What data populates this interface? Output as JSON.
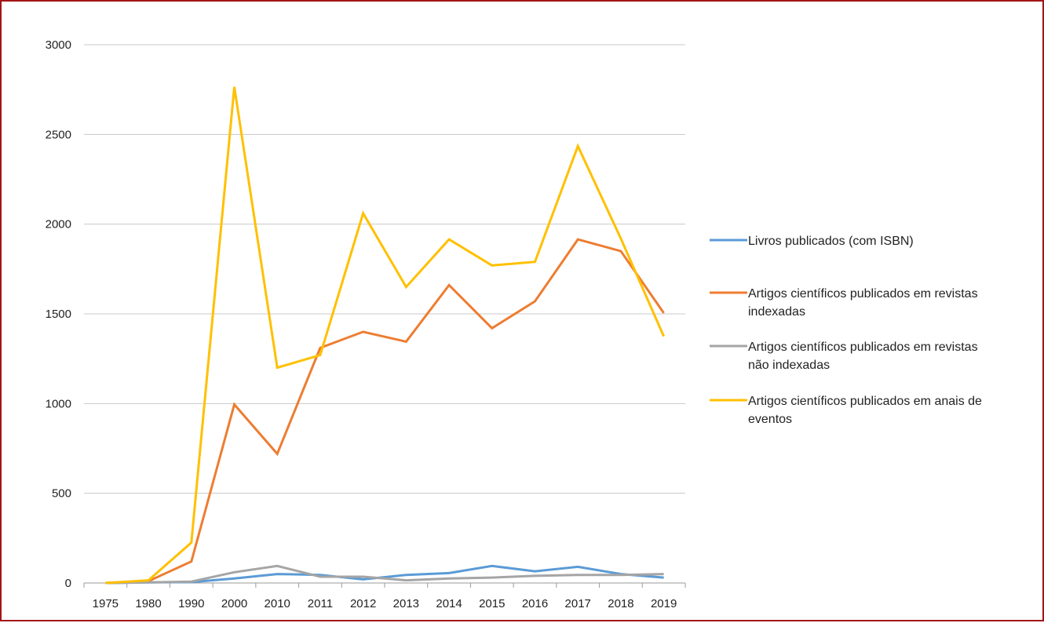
{
  "chart_data": {
    "type": "line",
    "title": "",
    "xlabel": "",
    "ylabel": "",
    "categories": [
      "1975",
      "1980",
      "1990",
      "2000",
      "2010",
      "2011",
      "2012",
      "2013",
      "2014",
      "2015",
      "2016",
      "2017",
      "2018",
      "2019"
    ],
    "ylim": [
      0,
      3000
    ],
    "yticks": [
      0,
      500,
      1000,
      1500,
      2000,
      2500,
      3000
    ],
    "grid": true,
    "legend_position": "right",
    "series": [
      {
        "name": "Livros publicados (com ISBN)",
        "color": "#5b9bd5",
        "values": [
          0,
          3,
          5,
          25,
          50,
          45,
          20,
          45,
          55,
          95,
          65,
          90,
          50,
          30
        ]
      },
      {
        "name": "Artigos científicos publicados em revistas indexadas",
        "color": "#ed7d31",
        "values": [
          0,
          10,
          120,
          995,
          720,
          1310,
          1400,
          1345,
          1660,
          1420,
          1570,
          1915,
          1850,
          1505
        ]
      },
      {
        "name": "Artigos científicos publicados em revistas não indexadas",
        "color": "#a5a5a5",
        "values": [
          0,
          3,
          8,
          60,
          95,
          35,
          35,
          15,
          25,
          30,
          40,
          45,
          45,
          50
        ]
      },
      {
        "name": "Artigos científicos publicados em anais de eventos",
        "color": "#ffc000",
        "values": [
          0,
          15,
          225,
          2765,
          1200,
          1270,
          2060,
          1650,
          1915,
          1770,
          1790,
          2435,
          1920,
          1375
        ]
      }
    ]
  }
}
